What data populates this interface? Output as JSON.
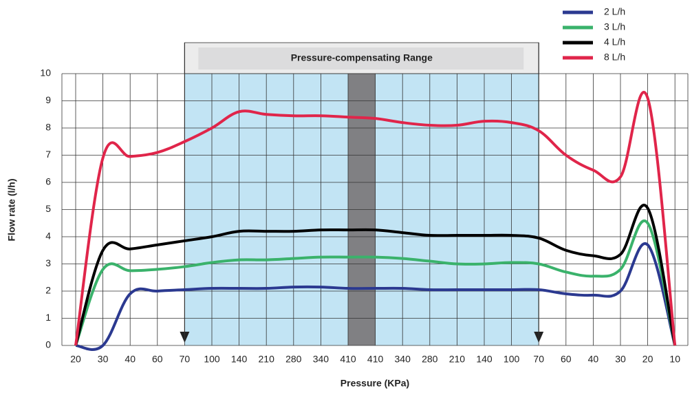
{
  "chart_data": {
    "type": "line",
    "x_label": "Pressure (KPa)",
    "y_label": "Flow rate (l/h)",
    "annotation": "Pressure-compensating Range",
    "categories": [
      "20",
      "30",
      "40",
      "60",
      "70",
      "100",
      "140",
      "210",
      "280",
      "340",
      "410",
      "410",
      "340",
      "280",
      "210",
      "140",
      "100",
      "70",
      "60",
      "40",
      "30",
      "20",
      "10"
    ],
    "series": [
      {
        "name": "2 L/h",
        "color": "#2b3990",
        "values": [
          0,
          0,
          1.9,
          2.0,
          2.05,
          2.1,
          2.1,
          2.1,
          2.15,
          2.15,
          2.1,
          2.1,
          2.1,
          2.05,
          2.05,
          2.05,
          2.05,
          2.05,
          1.9,
          1.85,
          2.0,
          3.7,
          0
        ]
      },
      {
        "name": "3 L/h",
        "color": "#3ab26b",
        "values": [
          0,
          2.8,
          2.75,
          2.8,
          2.9,
          3.05,
          3.15,
          3.15,
          3.2,
          3.25,
          3.25,
          3.25,
          3.2,
          3.1,
          3.0,
          3.0,
          3.05,
          3.0,
          2.7,
          2.55,
          2.8,
          4.5,
          0
        ]
      },
      {
        "name": "4 L/h",
        "color": "#000000",
        "values": [
          0,
          3.5,
          3.55,
          3.7,
          3.85,
          4.0,
          4.2,
          4.2,
          4.2,
          4.25,
          4.25,
          4.25,
          4.15,
          4.05,
          4.05,
          4.05,
          4.05,
          3.95,
          3.5,
          3.3,
          3.35,
          5.05,
          0
        ]
      },
      {
        "name": "8 L/h",
        "color": "#e0254a",
        "values": [
          0,
          6.9,
          6.95,
          7.1,
          7.5,
          8.0,
          8.6,
          8.5,
          8.45,
          8.45,
          8.4,
          8.35,
          8.2,
          8.1,
          8.1,
          8.25,
          8.2,
          7.9,
          7.0,
          6.45,
          6.2,
          9.1,
          0
        ]
      }
    ],
    "ylim": [
      0,
      10
    ],
    "yticks": [
      0,
      1,
      2,
      3,
      4,
      5,
      6,
      7,
      8,
      9,
      10
    ],
    "grid": true
  }
}
